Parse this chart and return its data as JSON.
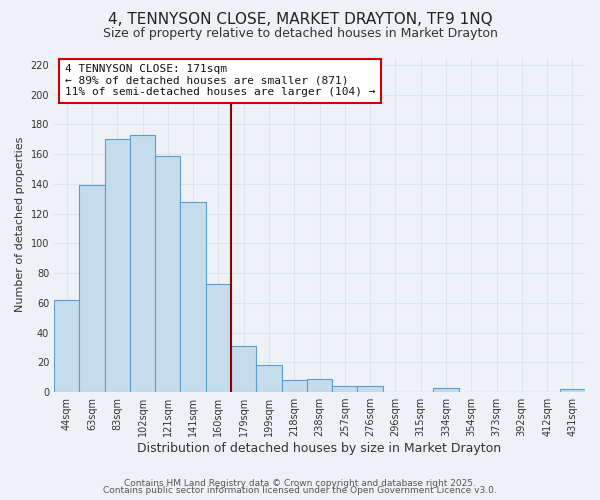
{
  "title": "4, TENNYSON CLOSE, MARKET DRAYTON, TF9 1NQ",
  "subtitle": "Size of property relative to detached houses in Market Drayton",
  "xlabel": "Distribution of detached houses by size in Market Drayton",
  "ylabel": "Number of detached properties",
  "bar_color": "#c5dced",
  "bar_edge_color": "#5b9ec9",
  "background_color": "#eef2f7",
  "grid_color": "#d8e4ee",
  "categories": [
    "44sqm",
    "63sqm",
    "83sqm",
    "102sqm",
    "121sqm",
    "141sqm",
    "160sqm",
    "179sqm",
    "199sqm",
    "218sqm",
    "238sqm",
    "257sqm",
    "276sqm",
    "296sqm",
    "315sqm",
    "334sqm",
    "354sqm",
    "373sqm",
    "392sqm",
    "412sqm",
    "431sqm"
  ],
  "values": [
    62,
    139,
    170,
    173,
    159,
    128,
    73,
    31,
    18,
    8,
    9,
    4,
    4,
    0,
    0,
    3,
    0,
    0,
    0,
    0,
    2
  ],
  "ylim": [
    0,
    225
  ],
  "yticks": [
    0,
    20,
    40,
    60,
    80,
    100,
    120,
    140,
    160,
    180,
    200,
    220
  ],
  "annotation_title": "4 TENNYSON CLOSE: 171sqm",
  "annotation_line1": "← 89% of detached houses are smaller (871)",
  "annotation_line2": "11% of semi-detached houses are larger (104) →",
  "annotation_box_color": "#ffffff",
  "annotation_box_edge_color": "#cc0000",
  "vline_color": "#8b0000",
  "footer1": "Contains HM Land Registry data © Crown copyright and database right 2025.",
  "footer2": "Contains public sector information licensed under the Open Government Licence v3.0.",
  "title_fontsize": 11,
  "subtitle_fontsize": 9,
  "xlabel_fontsize": 9,
  "ylabel_fontsize": 8,
  "tick_fontsize": 7,
  "annotation_fontsize": 8,
  "footer_fontsize": 6.5
}
